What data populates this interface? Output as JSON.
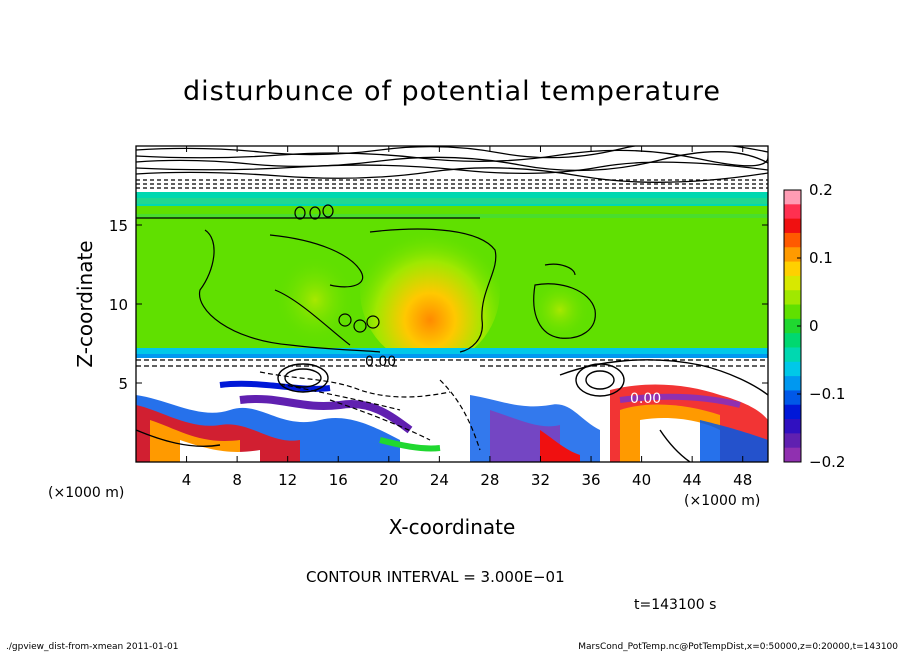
{
  "chart_data": {
    "type": "heatmap",
    "title": "disturbunce of potential temperature",
    "xlabel": "X-coordinate",
    "ylabel": "Z-coordinate",
    "x_unit": "(×1000 m)",
    "y_unit": "(×1000 m)",
    "xlim": [
      0,
      50
    ],
    "ylim": [
      0,
      20
    ],
    "x_ticks": [
      4,
      8,
      12,
      16,
      20,
      24,
      28,
      32,
      36,
      40,
      44,
      48
    ],
    "y_ticks": [
      5,
      10,
      15
    ],
    "colorbar": {
      "range": [
        -0.2,
        0.2
      ],
      "tick_labels": [
        "0.2",
        "0.1",
        "0",
        "−0.1",
        "−0.2"
      ],
      "tick_values": [
        0.2,
        0.1,
        0,
        -0.1,
        -0.2
      ],
      "colors": [
        "#ff9cb4",
        "#ff3050",
        "#f01010",
        "#ff5a00",
        "#ff9a00",
        "#ffd000",
        "#d8e800",
        "#a0e800",
        "#60e000",
        "#20d830",
        "#00d870",
        "#00d8b0",
        "#00c8e8",
        "#0098f0",
        "#0058e8",
        "#0018d8",
        "#3010c0",
        "#6020b0",
        "#9030b0"
      ]
    },
    "contour_label": "0.00",
    "contour_interval": "CONTOUR INTERVAL = 3.000E−01",
    "time_label": "t=143100 s"
  },
  "footer": {
    "left": "./gpview_dist-from-xmean   2011-01-01",
    "right": "MarsCond_PotTemp.nc@PotTempDist,x=0:50000,z=0:20000,t=143100"
  }
}
